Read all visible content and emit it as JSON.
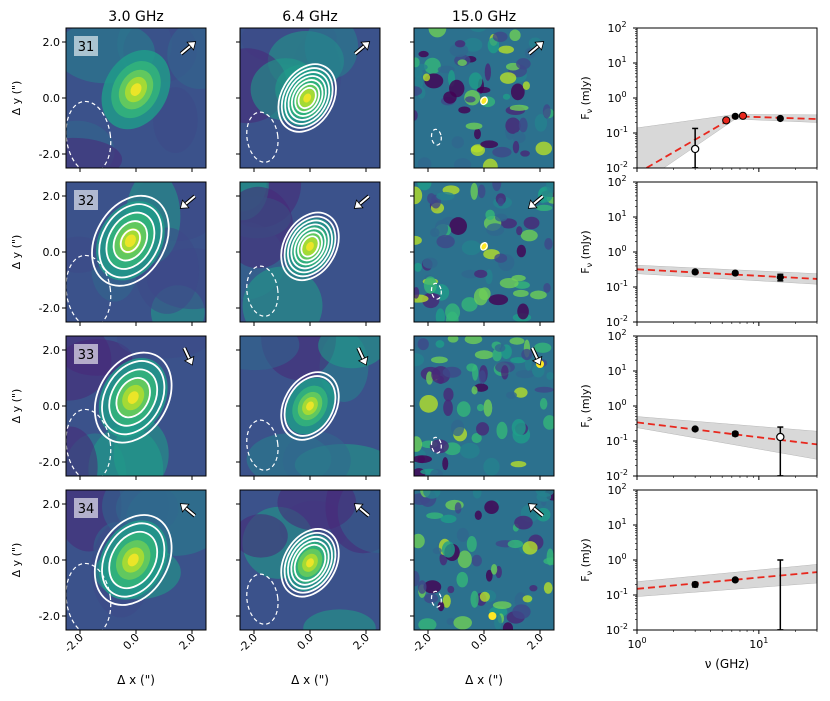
{
  "figure": {
    "column_titles": [
      "3.0 GHz",
      "6.4 GHz",
      "15.0 GHz"
    ],
    "image_xlabel": "Δ x (\")",
    "image_ylabel": "Δ y (\")",
    "image_ticks": [
      "-2.0",
      "0.0",
      "2.0"
    ],
    "sed_xlabel": "ν (GHz)",
    "sed_ylabel": "F",
    "sed_ylabel_sub": "ν",
    "sed_ylabel_unit": " (mJy)",
    "sed_xtick_labels": [
      "10",
      "10"
    ],
    "sed_xtick_exps": [
      "0",
      "1"
    ],
    "sed_ytick_labels": [
      "10",
      "10",
      "10",
      "10",
      "10"
    ],
    "sed_ytick_exps": [
      "-2",
      "-1",
      "0",
      "1",
      "2"
    ]
  },
  "chart_data": [
    {
      "type": "image",
      "source_id": "31",
      "frequency_ghz": 3.0,
      "xlim": [
        -2.5,
        2.5
      ],
      "ylim": [
        -2.5,
        2.5
      ],
      "arrow_direction": "up-right",
      "peak": [
        0.0,
        0.3
      ],
      "contours": 0
    },
    {
      "type": "image",
      "source_id": "31",
      "frequency_ghz": 6.4,
      "xlim": [
        -2.5,
        2.5
      ],
      "ylim": [
        -2.5,
        2.5
      ],
      "arrow_direction": "up-right",
      "peak": [
        -0.1,
        0.0
      ],
      "contours": 7
    },
    {
      "type": "image",
      "source_id": "31",
      "frequency_ghz": 15.0,
      "xlim": [
        -2.5,
        2.5
      ],
      "ylim": [
        -2.5,
        2.5
      ],
      "arrow_direction": "up-right",
      "peak": [
        0.0,
        -0.1
      ],
      "contours": 1
    },
    {
      "type": "scatter",
      "source_id": "31",
      "xscale": "log",
      "yscale": "log",
      "xlim": [
        1,
        30
      ],
      "ylim": [
        0.01,
        100
      ],
      "points": [
        {
          "x": 3.0,
          "y": 0.035,
          "err": 0.1,
          "marker": "open"
        },
        {
          "x": 5.4,
          "y": 0.23,
          "marker": "red"
        },
        {
          "x": 6.4,
          "y": 0.3,
          "marker": "filled"
        },
        {
          "x": 7.4,
          "y": 0.31,
          "marker": "red"
        },
        {
          "x": 15.0,
          "y": 0.26,
          "marker": "filled"
        }
      ],
      "fit": {
        "x": [
          1.0,
          6.4,
          30.0
        ],
        "y": [
          0.007,
          0.3,
          0.25
        ]
      },
      "band": {
        "x": [
          1.0,
          6.4,
          30.0
        ],
        "lo": [
          0.003,
          0.25,
          0.2
        ],
        "hi": [
          0.14,
          0.34,
          0.33
        ]
      }
    },
    {
      "type": "image",
      "source_id": "32",
      "frequency_ghz": 3.0,
      "xlim": [
        -2.5,
        2.5
      ],
      "ylim": [
        -2.5,
        2.5
      ],
      "arrow_direction": "down-left",
      "peak": [
        -0.2,
        0.4
      ],
      "contours": 5
    },
    {
      "type": "image",
      "source_id": "32",
      "frequency_ghz": 6.4,
      "xlim": [
        -2.5,
        2.5
      ],
      "ylim": [
        -2.5,
        2.5
      ],
      "arrow_direction": "down-left",
      "peak": [
        0.0,
        0.2
      ],
      "contours": 7
    },
    {
      "type": "image",
      "source_id": "32",
      "frequency_ghz": 15.0,
      "xlim": [
        -2.5,
        2.5
      ],
      "ylim": [
        -2.5,
        2.5
      ],
      "arrow_direction": "down-left",
      "peak": [
        0.0,
        0.2
      ],
      "contours": 1
    },
    {
      "type": "scatter",
      "source_id": "32",
      "xscale": "log",
      "yscale": "log",
      "xlim": [
        1,
        30
      ],
      "ylim": [
        0.01,
        100
      ],
      "points": [
        {
          "x": 3.0,
          "y": 0.27,
          "err": 0.03,
          "marker": "filled"
        },
        {
          "x": 6.4,
          "y": 0.25,
          "err": 0.02,
          "marker": "filled"
        },
        {
          "x": 15.0,
          "y": 0.19,
          "err": 0.04,
          "marker": "filled"
        }
      ],
      "fit": {
        "x": [
          1.0,
          30.0
        ],
        "y": [
          0.32,
          0.17
        ]
      },
      "band": {
        "x": [
          1.0,
          30.0
        ],
        "lo": [
          0.24,
          0.12
        ],
        "hi": [
          0.42,
          0.24
        ]
      }
    },
    {
      "type": "image",
      "source_id": "33",
      "frequency_ghz": 3.0,
      "xlim": [
        -2.5,
        2.5
      ],
      "ylim": [
        -2.5,
        2.5
      ],
      "arrow_direction": "down-right",
      "peak": [
        -0.1,
        0.3
      ],
      "contours": 4
    },
    {
      "type": "image",
      "source_id": "33",
      "frequency_ghz": 6.4,
      "xlim": [
        -2.5,
        2.5
      ],
      "ylim": [
        -2.5,
        2.5
      ],
      "arrow_direction": "down-right",
      "peak": [
        0.0,
        0.0
      ],
      "contours": 2
    },
    {
      "type": "image",
      "source_id": "33",
      "frequency_ghz": 15.0,
      "xlim": [
        -2.5,
        2.5
      ],
      "ylim": [
        -2.5,
        2.5
      ],
      "arrow_direction": "down-right",
      "peak": [
        2.0,
        1.5
      ],
      "contours": 0
    },
    {
      "type": "scatter",
      "source_id": "33",
      "xscale": "log",
      "yscale": "log",
      "xlim": [
        1,
        30
      ],
      "ylim": [
        0.01,
        100
      ],
      "points": [
        {
          "x": 3.0,
          "y": 0.22,
          "err": 0.02,
          "marker": "filled"
        },
        {
          "x": 6.4,
          "y": 0.16,
          "err": 0.02,
          "marker": "filled"
        },
        {
          "x": 15.0,
          "y": 0.13,
          "err": 0.12,
          "marker": "open"
        }
      ],
      "fit": {
        "x": [
          1.0,
          30.0
        ],
        "y": [
          0.34,
          0.08
        ]
      },
      "band": {
        "x": [
          1.0,
          30.0
        ],
        "lo": [
          0.24,
          0.03
        ],
        "hi": [
          0.5,
          0.19
        ]
      }
    },
    {
      "type": "image",
      "source_id": "34",
      "frequency_ghz": 3.0,
      "xlim": [
        -2.5,
        2.5
      ],
      "ylim": [
        -2.5,
        2.5
      ],
      "arrow_direction": "up-left",
      "peak": [
        -0.1,
        0.0
      ],
      "contours": 3
    },
    {
      "type": "image",
      "source_id": "34",
      "frequency_ghz": 6.4,
      "xlim": [
        -2.5,
        2.5
      ],
      "ylim": [
        -2.5,
        2.5
      ],
      "arrow_direction": "up-left",
      "peak": [
        0.0,
        -0.1
      ],
      "contours": 5
    },
    {
      "type": "image",
      "source_id": "34",
      "frequency_ghz": 15.0,
      "xlim": [
        -2.5,
        2.5
      ],
      "ylim": [
        -2.5,
        2.5
      ],
      "arrow_direction": "up-left",
      "peak": [
        0.3,
        -2.0
      ],
      "contours": 0
    },
    {
      "type": "scatter",
      "source_id": "34",
      "xscale": "log",
      "yscale": "log",
      "xlim": [
        1,
        30
      ],
      "ylim": [
        0.01,
        100
      ],
      "points": [
        {
          "x": 3.0,
          "y": 0.2,
          "err": 0.03,
          "marker": "filled"
        },
        {
          "x": 6.4,
          "y": 0.27,
          "err": 0.02,
          "marker": "filled"
        },
        {
          "x": 15.0,
          "y": 0.02,
          "err": 0.98,
          "marker": "none"
        }
      ],
      "fit": {
        "x": [
          1.0,
          30.0
        ],
        "y": [
          0.15,
          0.45
        ]
      },
      "band": {
        "x": [
          1.0,
          30.0
        ],
        "lo": [
          0.09,
          0.22
        ],
        "hi": [
          0.24,
          0.75
        ]
      }
    }
  ]
}
